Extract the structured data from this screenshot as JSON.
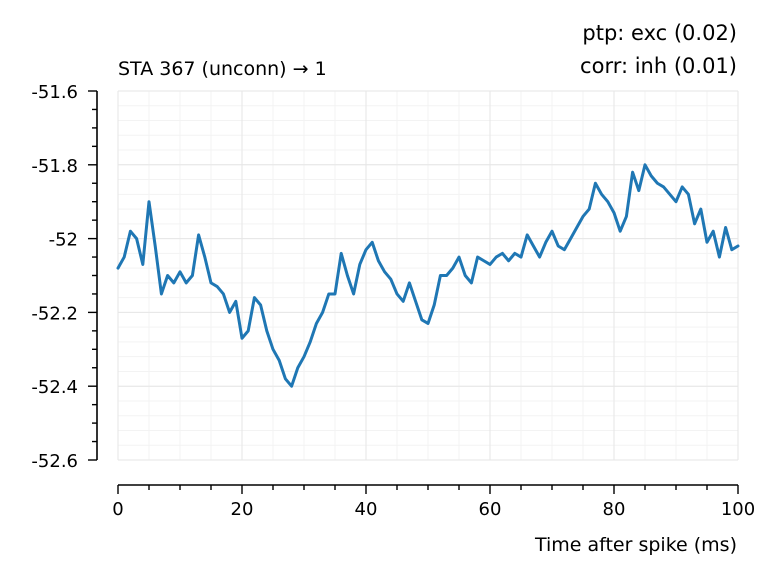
{
  "chart_data": {
    "type": "line",
    "title_left": "STA 367 (unconn) → 1",
    "title_right_line1": "ptp:  exc (0.02)",
    "title_right_line2": "corr: inh (0.01)",
    "xlabel": "Time after spike (ms)",
    "ylabel": "",
    "xlim": [
      0,
      100
    ],
    "ylim": [
      -52.6,
      -51.6
    ],
    "x_ticks": [
      0,
      20,
      40,
      60,
      80,
      100
    ],
    "x_tick_labels": [
      "0",
      "20",
      "40",
      "60",
      "80",
      "100"
    ],
    "y_ticks": [
      -51.6,
      -51.8,
      -52,
      -52.2,
      -52.4,
      -52.6
    ],
    "y_tick_labels": [
      "-51.6",
      "-51.8",
      "-52",
      "-52.2",
      "-52.4",
      "-52.6"
    ],
    "grid": true,
    "line_color": "#1f77b4",
    "series": [
      {
        "x": [
          0,
          1,
          2,
          3,
          4,
          5,
          6,
          7,
          8,
          9,
          10,
          11,
          12,
          13,
          14,
          15,
          16,
          17,
          18,
          19,
          20,
          21,
          22,
          23,
          24,
          25,
          26,
          27,
          28,
          29,
          30,
          31,
          32,
          33,
          34,
          35,
          36,
          37,
          38,
          39,
          40,
          41,
          42,
          43,
          44,
          45,
          46,
          47,
          48,
          49,
          50,
          51,
          52,
          53,
          54,
          55,
          56,
          57,
          58,
          59,
          60,
          61,
          62,
          63,
          64,
          65,
          66,
          67,
          68,
          69,
          70,
          71,
          72,
          73,
          74,
          75,
          76,
          77,
          78,
          79,
          80,
          81,
          82,
          83,
          84,
          85,
          86,
          87,
          88,
          89,
          90,
          91,
          92,
          93,
          94,
          95,
          96,
          97,
          98,
          99,
          100
        ],
        "y": [
          -52.08,
          -52.05,
          -51.98,
          -52.0,
          -52.07,
          -51.9,
          -52.02,
          -52.15,
          -52.1,
          -52.12,
          -52.09,
          -52.12,
          -52.1,
          -51.99,
          -52.05,
          -52.12,
          -52.13,
          -52.15,
          -52.2,
          -52.17,
          -52.27,
          -52.25,
          -52.16,
          -52.18,
          -52.25,
          -52.3,
          -52.33,
          -52.38,
          -52.4,
          -52.35,
          -52.32,
          -52.28,
          -52.23,
          -52.2,
          -52.15,
          -52.15,
          -52.04,
          -52.1,
          -52.15,
          -52.07,
          -52.03,
          -52.01,
          -52.06,
          -52.09,
          -52.11,
          -52.15,
          -52.17,
          -52.12,
          -52.17,
          -52.22,
          -52.23,
          -52.18,
          -52.1,
          -52.1,
          -52.08,
          -52.05,
          -52.1,
          -52.12,
          -52.05,
          -52.06,
          -52.07,
          -52.05,
          -52.04,
          -52.06,
          -52.04,
          -52.05,
          -51.99,
          -52.02,
          -52.05,
          -52.01,
          -51.98,
          -52.02,
          -52.03,
          -52.0,
          -51.97,
          -51.94,
          -51.92,
          -51.85,
          -51.88,
          -51.9,
          -51.93,
          -51.98,
          -51.94,
          -51.82,
          -51.87,
          -51.8,
          -51.83,
          -51.85,
          -51.86,
          -51.88,
          -51.9,
          -51.86,
          -51.88,
          -51.96,
          -51.92,
          -52.01,
          -51.98,
          -52.05,
          -51.97,
          -52.03,
          -52.02
        ]
      }
    ]
  }
}
